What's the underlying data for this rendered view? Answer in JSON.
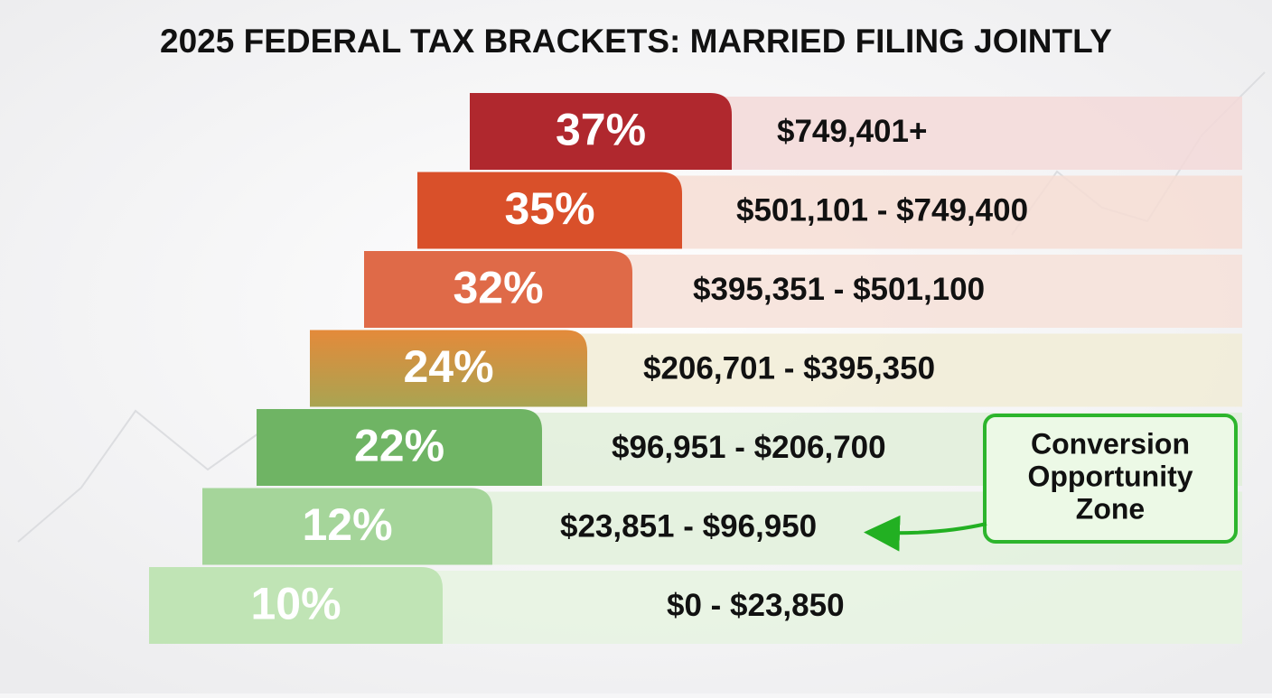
{
  "title": "2025 FEDERAL TAX BRACKETS: MARRIED FILING JOINTLY",
  "brackets": [
    {
      "rate": "37%",
      "range": "$749,401+"
    },
    {
      "rate": "35%",
      "range": "$501,101 - $749,400"
    },
    {
      "rate": "32%",
      "range": "$395,351 - $501,100"
    },
    {
      "rate": "24%",
      "range": "$206,701 - $395,350"
    },
    {
      "rate": "22%",
      "range": "$96,951 - $206,700"
    },
    {
      "rate": "12%",
      "range": "$23,851 - $96,950"
    },
    {
      "rate": "10%",
      "range": "$0 - $23,850"
    }
  ],
  "callout": {
    "lines": [
      "Conversion",
      "Opportunity",
      "Zone"
    ]
  }
}
